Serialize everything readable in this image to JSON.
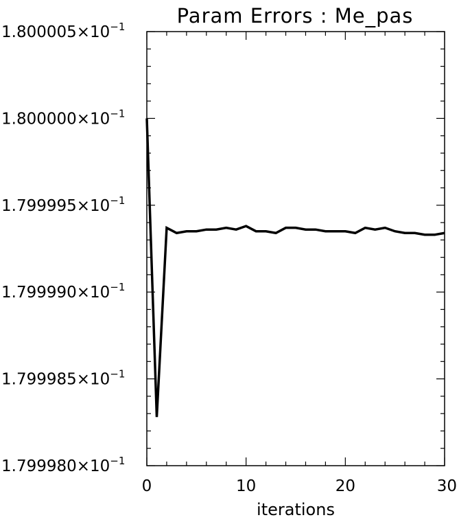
{
  "chart_data": {
    "type": "line",
    "title": "Param Errors : Me_pas",
    "xlabel": "iterations",
    "ylabel": "",
    "xlim": [
      0,
      30
    ],
    "ylim": [
      0.179998,
      0.1800005
    ],
    "xticks": [
      0,
      10,
      20,
      30
    ],
    "xtick_labels": [
      "0",
      "10",
      "20",
      "30"
    ],
    "yticks": [
      0.179998,
      0.1799985,
      0.179999,
      0.1799995,
      0.18,
      0.1800005
    ],
    "ytick_labels": [
      "1.799980×10",
      "1.799985×10",
      "1.799990×10",
      "1.799995×10",
      "1.800000×10",
      "1.800005×10"
    ],
    "ytick_exponent": "−1",
    "grid": false,
    "line_color": "#000000",
    "series": [
      {
        "x": [
          0,
          1,
          2,
          3,
          4,
          5,
          6,
          7,
          8,
          9,
          10,
          11,
          12,
          13,
          14,
          15,
          16,
          17,
          18,
          19,
          20,
          21,
          22,
          23,
          24,
          25,
          26,
          27,
          28,
          29,
          30
        ],
        "values": [
          0.18,
          0.17999828,
          0.17999937,
          0.17999934,
          0.17999935,
          0.17999935,
          0.17999936,
          0.17999936,
          0.17999937,
          0.17999936,
          0.17999938,
          0.17999935,
          0.17999935,
          0.17999934,
          0.17999937,
          0.17999937,
          0.17999936,
          0.17999936,
          0.17999935,
          0.17999935,
          0.17999935,
          0.17999934,
          0.17999937,
          0.17999936,
          0.17999937,
          0.17999935,
          0.17999934,
          0.17999934,
          0.17999933,
          0.17999933,
          0.17999934
        ]
      }
    ]
  }
}
